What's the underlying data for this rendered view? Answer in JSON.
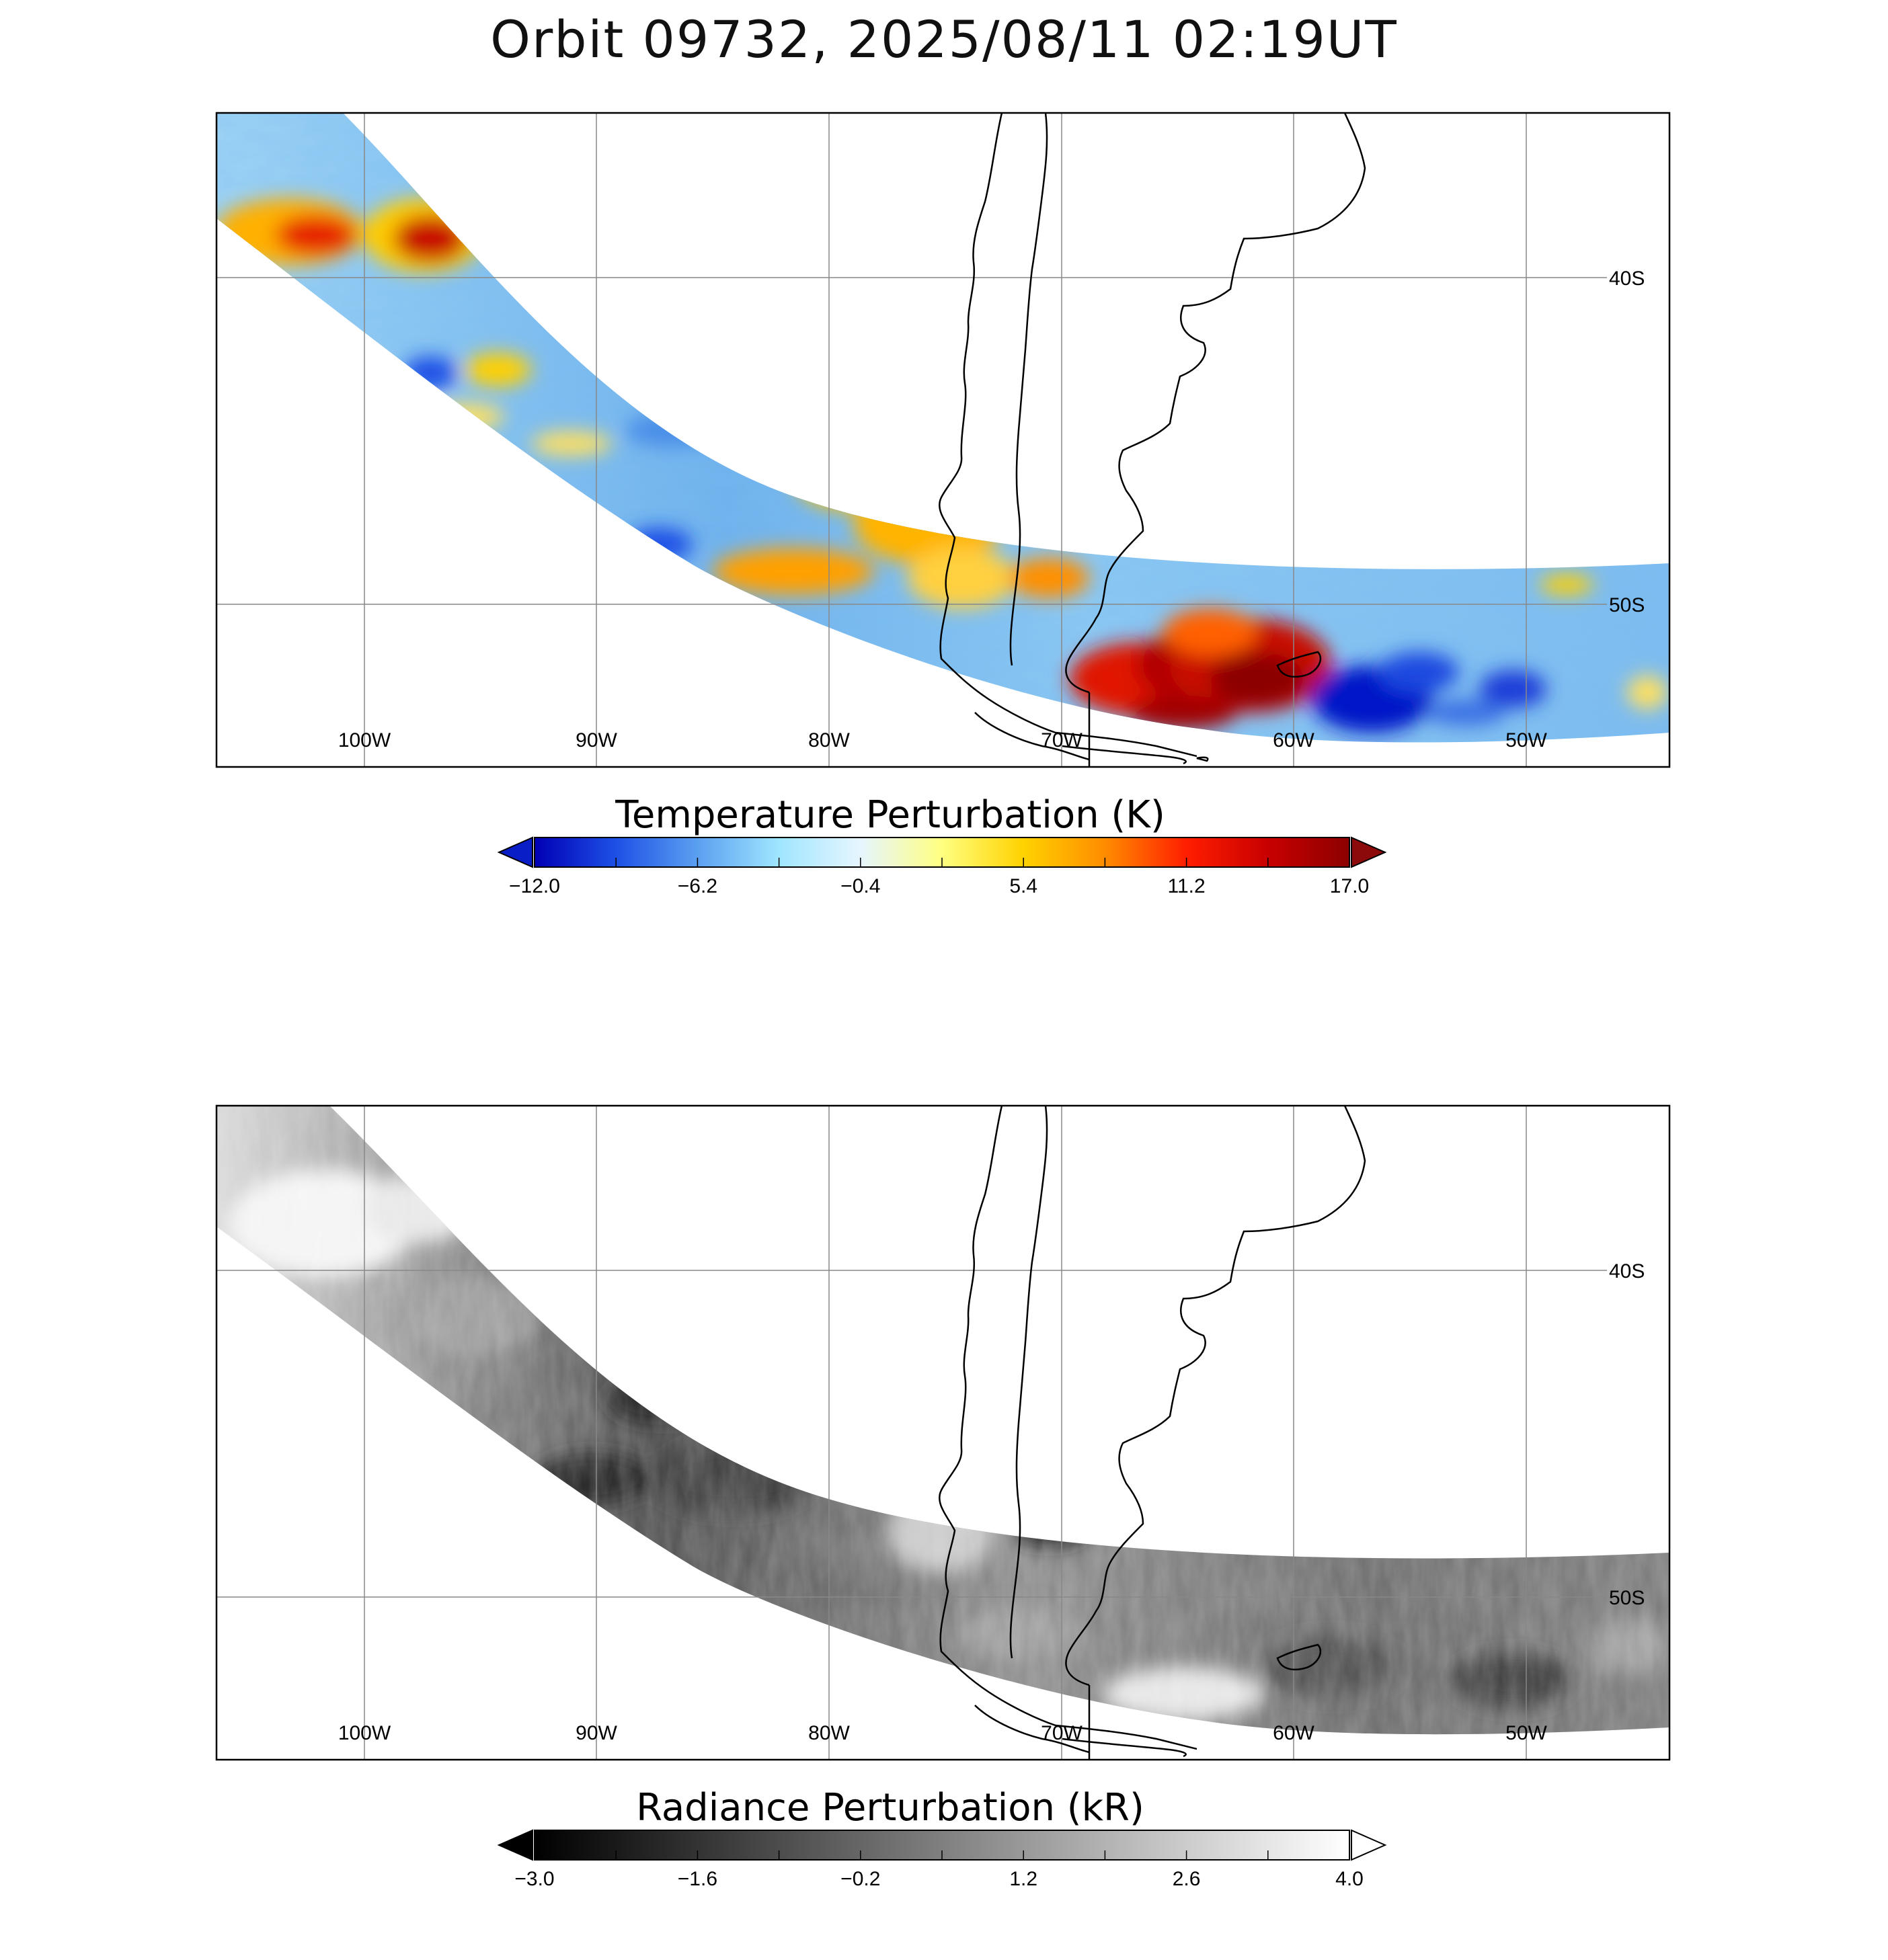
{
  "title": "Orbit 09732, 2025/08/11 02:19UT",
  "lon_labels": [
    "100W",
    "90W",
    "80W",
    "70W",
    "60W",
    "50W"
  ],
  "lat_labels": [
    "40S",
    "50S"
  ],
  "panels": [
    {
      "name": "temperature",
      "colorbar_title": "Temperature Perturbation (K)",
      "colorbar_ticks": [
        "-12.0",
        "-6.2",
        "-0.4",
        "5.4",
        "11.2",
        "17.0"
      ],
      "colormap": [
        "#0000b4",
        "#1e50e6",
        "#5aa0f0",
        "#a0e6ff",
        "#e6f5ff",
        "#ffff80",
        "#ffd200",
        "#ff8c00",
        "#ff1e00",
        "#c80000",
        "#8c0000"
      ],
      "under_color": "#0a1ec8",
      "over_color": "#8c0a0a",
      "range": [
        -12.0,
        17.0
      ]
    },
    {
      "name": "radiance",
      "colorbar_title": "Radiance Perturbation (kR)",
      "colorbar_ticks": [
        "-3.0",
        "-1.6",
        "-0.2",
        "1.2",
        "2.6",
        "4.0"
      ],
      "colormap": [
        "#000000",
        "#ffffff"
      ],
      "under_color": "#000000",
      "over_color": "#ffffff",
      "range": [
        -3.0,
        4.0
      ]
    }
  ]
}
